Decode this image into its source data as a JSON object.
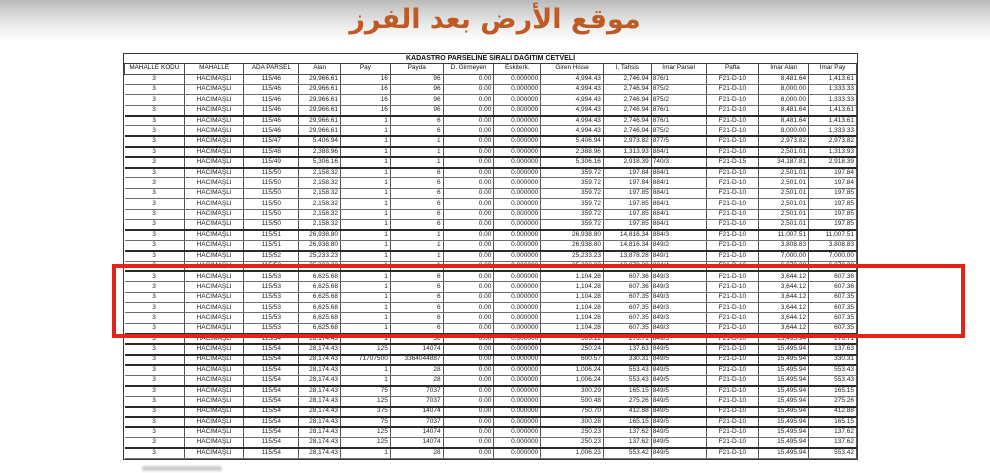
{
  "page_title": "موقع الأرض بعد الفرز",
  "colors": {
    "title_text": "#c05a22",
    "highlight_box": "#e02417"
  },
  "table": {
    "title": "KADASTRO PARSELİNE SIRALI DAĞITIM CETVELİ",
    "columns": [
      "MAHALLE KODU",
      "MAHALLE",
      "ADA PARSEL",
      "Alan",
      "Pay",
      "Payda",
      "D. Girmeyen",
      "Eskiterk.",
      "Giren Hisse",
      "İ. Tahsis",
      "İmar Parsel",
      "Pafta",
      "İmar Alan",
      "İmar Pay"
    ],
    "highlight": {
      "parcel": "115/53",
      "first_row": 20,
      "last_row": 25
    },
    "rows": [
      [
        "3",
        "HACIMAŞLI",
        "115/46",
        "29,966.61",
        "16",
        "96",
        "0.00",
        "0.000000",
        "4,994.43",
        "2,746.94",
        "876/1",
        "F21-D-10",
        "8,481.64",
        "1,413.61"
      ],
      [
        "3",
        "HACIMAŞLI",
        "115/46",
        "29,966.61",
        "16",
        "96",
        "0.00",
        "0.000000",
        "4,994.43",
        "2,746.94",
        "875/2",
        "F21-D-10",
        "8,000.00",
        "1,333.33"
      ],
      [
        "3",
        "HACIMAŞLI",
        "115/46",
        "29,966.61",
        "16",
        "96",
        "0.00",
        "0.000000",
        "4,994.43",
        "2,746.94",
        "875/2",
        "F21-D-10",
        "8,000.00",
        "1,333.33"
      ],
      [
        "3",
        "HACIMAŞLI",
        "115/46",
        "29,966.61",
        "16",
        "96",
        "0.00",
        "0.000000",
        "4,994.43",
        "2,746.94",
        "876/1",
        "F21-D-10",
        "8,481.64",
        "1,413.61"
      ],
      [
        "3",
        "HACIMAŞLI",
        "115/46",
        "29,966.61",
        "1",
        "6",
        "0.00",
        "0.000000",
        "4,994.43",
        "2,746.94",
        "876/1",
        "F21-D-10",
        "8,481.64",
        "1,413.61"
      ],
      [
        "3",
        "HACIMAŞLI",
        "115/46",
        "29,966.61",
        "1",
        "6",
        "0.00",
        "0.000000",
        "4,994.43",
        "2,746.94",
        "875/2",
        "F21-D-10",
        "8,000.00",
        "1,333.33"
      ],
      [
        "3",
        "HACIMAŞLI",
        "115/47",
        "5,406.94",
        "1",
        "1",
        "0.00",
        "0.000000",
        "5,406.94",
        "2,973.82",
        "877/5",
        "F21-D-10",
        "2,973.82",
        "2,973.82"
      ],
      [
        "3",
        "HACIMAŞLI",
        "115/48",
        "2,388.96",
        "1",
        "1",
        "0.00",
        "0.000000",
        "2,388.96",
        "1,313.93",
        "884/1",
        "F21-D-10",
        "2,501.01",
        "1,313.93"
      ],
      [
        "3",
        "HACIMAŞLI",
        "115/49",
        "5,306.16",
        "1",
        "1",
        "0.00",
        "0.000000",
        "5,306.16",
        "2,918.39",
        "740/3",
        "F21-D-15",
        "34,187.81",
        "2,918.39"
      ],
      [
        "3",
        "HACIMAŞLI",
        "115/50",
        "2,158.32",
        "1",
        "6",
        "0.00",
        "0.000000",
        "359.72",
        "197.84",
        "884/1",
        "F21-D-10",
        "2,501.01",
        "197.84"
      ],
      [
        "3",
        "HACIMAŞLI",
        "115/50",
        "2,158.32",
        "1",
        "6",
        "0.00",
        "0.000000",
        "359.72",
        "197.84",
        "884/1",
        "F21-D-10",
        "2,501.01",
        "197.84"
      ],
      [
        "3",
        "HACIMAŞLI",
        "115/50",
        "2,158.32",
        "1",
        "6",
        "0.00",
        "0.000000",
        "359.72",
        "197.85",
        "884/1",
        "F21-D-10",
        "2,501.01",
        "197.85"
      ],
      [
        "3",
        "HACIMAŞLI",
        "115/50",
        "2,158.32",
        "1",
        "6",
        "0.00",
        "0.000000",
        "359.72",
        "197.85",
        "884/1",
        "F21-D-10",
        "2,501.01",
        "197.85"
      ],
      [
        "3",
        "HACIMAŞLI",
        "115/50",
        "2,158.32",
        "1",
        "6",
        "0.00",
        "0.000000",
        "359.72",
        "197.85",
        "884/1",
        "F21-D-10",
        "2,501.01",
        "197.85"
      ],
      [
        "3",
        "HACIMAŞLI",
        "115/50",
        "2,158.32",
        "1",
        "6",
        "0.00",
        "0.000000",
        "359.72",
        "197.85",
        "884/1",
        "F21-D-10",
        "2,501.01",
        "197.85"
      ],
      [
        "3",
        "HACIMAŞLI",
        "115/51",
        "26,938.80",
        "1",
        "1",
        "0.00",
        "0.000000",
        "26,938.80",
        "14,816.34",
        "884/3",
        "F21-D-10",
        "11,007.51",
        "11,007.51"
      ],
      [
        "3",
        "HACIMAŞLI",
        "115/51",
        "26,938.80",
        "1",
        "1",
        "0.00",
        "0.000000",
        "26,938.80",
        "14,816.34",
        "849/2",
        "F21-D-10",
        "3,808.83",
        "3,808.83"
      ],
      [
        "3",
        "HACIMAŞLI",
        "115/52",
        "25,233.23",
        "1",
        "1",
        "0.00",
        "0.000000",
        "25,233.23",
        "13,878.28",
        "849/1",
        "F21-D-10",
        "7,000.00",
        "7,000.00"
      ],
      [
        "3",
        "HACIMAŞLI",
        "115/52",
        "25,233.23",
        "1",
        "1",
        "0.00",
        "0.000000",
        "25,233.23",
        "13,878.28",
        "884/4",
        "F21-D-10",
        "6,878.28",
        "6,878.28"
      ],
      [
        "3",
        "HACIMAŞLI",
        "115/53",
        "6,625.68",
        "1",
        "6",
        "0.00",
        "0.000000",
        "1,104.28",
        "607.36",
        "849/3",
        "F21-D-10",
        "3,644.12",
        "607.36"
      ],
      [
        "3",
        "HACIMAŞLI",
        "115/53",
        "6,625.68",
        "1",
        "6",
        "0.00",
        "0.000000",
        "1,104.28",
        "607.36",
        "849/3",
        "F21-D-10",
        "3,644.12",
        "607.36"
      ],
      [
        "3",
        "HACIMAŞLI",
        "115/53",
        "6,625.68",
        "1",
        "6",
        "0.00",
        "0.000000",
        "1,104.28",
        "607.35",
        "849/3",
        "F21-D-10",
        "3,644.12",
        "607.35"
      ],
      [
        "3",
        "HACIMAŞLI",
        "115/53",
        "6,625.68",
        "1",
        "6",
        "0.00",
        "0.000000",
        "1,104.28",
        "607.35",
        "849/3",
        "F21-D-10",
        "3,644.12",
        "607.35"
      ],
      [
        "3",
        "HACIMAŞLI",
        "115/53",
        "6,625.68",
        "1",
        "6",
        "0.00",
        "0.000000",
        "1,104.28",
        "607.35",
        "849/3",
        "F21-D-10",
        "3,644.12",
        "607.35"
      ],
      [
        "3",
        "HACIMAŞLI",
        "115/53",
        "6,625.68",
        "1",
        "6",
        "0.00",
        "0.000000",
        "1,104.28",
        "607.35",
        "849/3",
        "F21-D-10",
        "3,644.12",
        "607.35"
      ],
      [
        "3",
        "HACIMAŞLI",
        "115/54",
        "28,174.43",
        "1",
        "56",
        "0.00",
        "0.000000",
        "503.12",
        "276.71",
        "849/5",
        "F21-D-10",
        "15,495.94",
        "276.71"
      ],
      [
        "3",
        "HACIMAŞLI",
        "115/54",
        "28,174.43",
        "125",
        "14074",
        "0.00",
        "0.000000",
        "250.24",
        "137.63",
        "849/5",
        "F21-D-10",
        "15,495.94",
        "137.63"
      ],
      [
        "3",
        "HACIMAŞLI",
        "115/54",
        "28,174.43",
        "71707500",
        "3364044887",
        "0.00",
        "0.000000",
        "600.57",
        "330.31",
        "849/5",
        "F21-D-10",
        "15,495.94",
        "330.31"
      ],
      [
        "3",
        "HACIMAŞLI",
        "115/54",
        "28,174.43",
        "1",
        "28",
        "0.00",
        "0.000000",
        "1,006.24",
        "553.43",
        "849/5",
        "F21-D-10",
        "15,495.94",
        "553.43"
      ],
      [
        "3",
        "HACIMAŞLI",
        "115/54",
        "28,174.43",
        "1",
        "28",
        "0.00",
        "0.000000",
        "1,006.24",
        "553.43",
        "849/5",
        "F21-D-10",
        "15,495.94",
        "553.43"
      ],
      [
        "3",
        "HACIMAŞLI",
        "115/54",
        "28,174.43",
        "75",
        "7037",
        "0.00",
        "0.000000",
        "300.29",
        "165.15",
        "849/5",
        "F21-D-10",
        "15,495.94",
        "165.15"
      ],
      [
        "3",
        "HACIMAŞLI",
        "115/54",
        "28,174.43",
        "125",
        "7037",
        "0.00",
        "0.000000",
        "500.48",
        "275.26",
        "849/5",
        "F21-D-10",
        "15,495.94",
        "275.26"
      ],
      [
        "3",
        "HACIMAŞLI",
        "115/54",
        "28,174.43",
        "375",
        "14074",
        "0.00",
        "0.000000",
        "750.70",
        "412.88",
        "849/5",
        "F21-D-10",
        "15,495.94",
        "412.88"
      ],
      [
        "3",
        "HACIMAŞLI",
        "115/54",
        "28,174.43",
        "75",
        "7037",
        "0.00",
        "0.000000",
        "300.28",
        "165.15",
        "849/5",
        "F21-D-10",
        "15,495.94",
        "165.15"
      ],
      [
        "3",
        "HACIMAŞLI",
        "115/54",
        "28,174.43",
        "125",
        "14074",
        "0.00",
        "0.000000",
        "250.23",
        "137.62",
        "849/5",
        "F21-D-10",
        "15,495.94",
        "137.62"
      ],
      [
        "3",
        "HACIMAŞLI",
        "115/54",
        "28,174.43",
        "125",
        "14074",
        "0.00",
        "0.000000",
        "250.23",
        "137.62",
        "849/5",
        "F21-D-10",
        "15,495.94",
        "137.62"
      ],
      [
        "3",
        "HACIMAŞLI",
        "115/54",
        "28,174.43",
        "1",
        "28",
        "0.00",
        "0.000000",
        "1,006.23",
        "553.42",
        "849/5",
        "F21-D-10",
        "15,495.94",
        "553.42"
      ]
    ]
  }
}
